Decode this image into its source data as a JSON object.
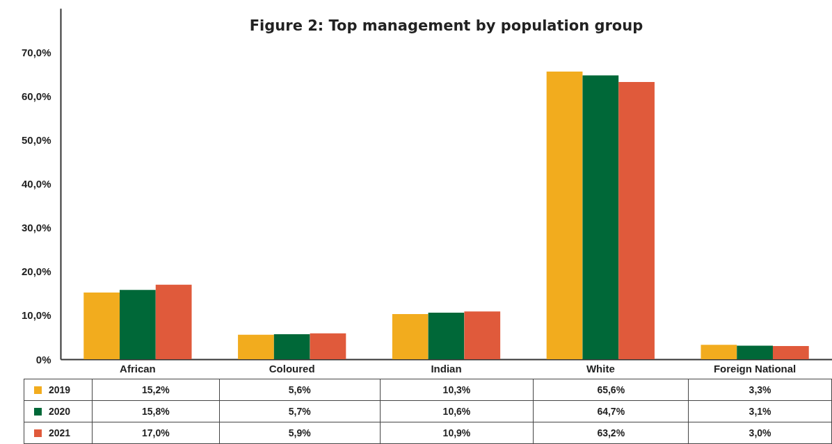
{
  "chart_data": {
    "type": "bar",
    "title": "Figure 2: Top management by population group",
    "categories": [
      "African",
      "Coloured",
      "Indian",
      "White",
      "Foreign National"
    ],
    "series": [
      {
        "name": "2019",
        "color": "#f2ac1e",
        "values": [
          15.2,
          5.6,
          10.3,
          65.6,
          3.3
        ],
        "value_labels": [
          "15,2%",
          "5,6%",
          "10,3%",
          "65,6%",
          "3,3%"
        ]
      },
      {
        "name": "2020",
        "color": "#006838",
        "values": [
          15.8,
          5.7,
          10.6,
          64.7,
          3.1
        ],
        "value_labels": [
          "15,8%",
          "5,7%",
          "10,6%",
          "64,7%",
          "3,1%"
        ]
      },
      {
        "name": "2021",
        "color": "#e05a3b",
        "values": [
          17.0,
          5.9,
          10.9,
          63.2,
          3.0
        ],
        "value_labels": [
          "17,0%",
          "5,9%",
          "10,9%",
          "63,2%",
          "3,0%"
        ]
      }
    ],
    "ylim": [
      0,
      80
    ],
    "yticks": [
      {
        "value": 0,
        "label": "0%"
      },
      {
        "value": 10,
        "label": "10,0%"
      },
      {
        "value": 20,
        "label": "20,0%"
      },
      {
        "value": 30,
        "label": "30,0%"
      },
      {
        "value": 40,
        "label": "40,0%"
      },
      {
        "value": 50,
        "label": "50,0%"
      },
      {
        "value": 60,
        "label": "60,0%"
      },
      {
        "value": 70,
        "label": "70,0%"
      }
    ],
    "grid": false,
    "legend": "bottom"
  }
}
